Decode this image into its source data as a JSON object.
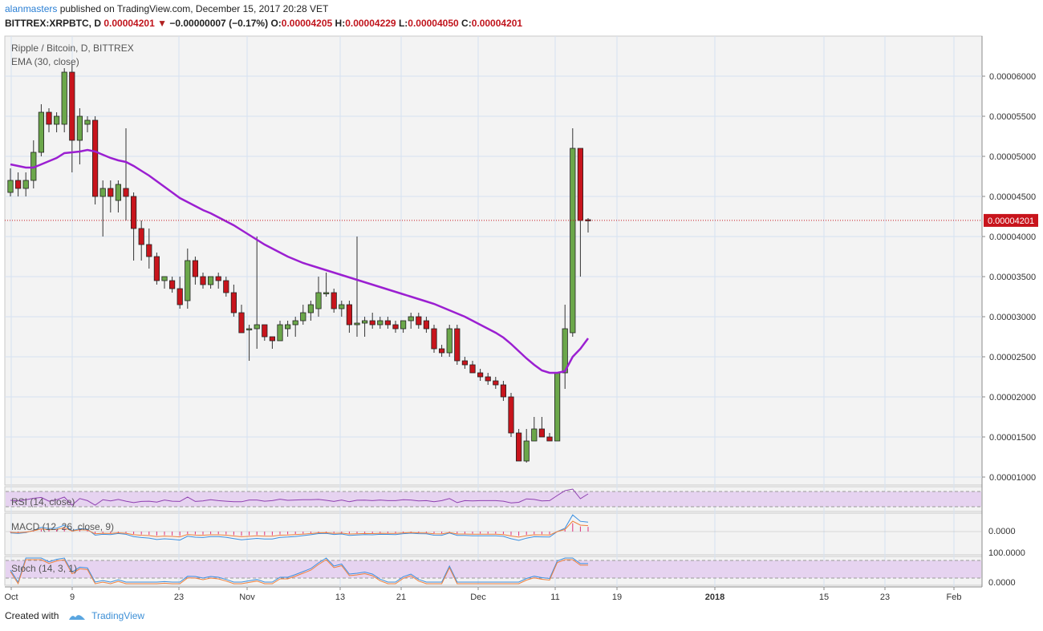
{
  "header": {
    "publisher": "alanmasters",
    "published_text": " published on TradingView.com, December 15, 2017 20:28 VET",
    "symbol": "BITTREX:XRPBTC, D",
    "last": "0.00004201",
    "change": "−0.00000007 (−0.17%)",
    "o_label": "O:",
    "o": "0.00004205",
    "h_label": "H:",
    "h": "0.00004229",
    "l_label": "L:",
    "l": "0.00004050",
    "c_label": "C:",
    "c": "0.00004201"
  },
  "footer": {
    "created_with": "Created with",
    "brand": "TradingView"
  },
  "chart_data": {
    "type": "candlestick",
    "title": "Ripple / Bitcoin, D, BITTREX",
    "indicator_label": "EMA (30, close)",
    "ylim": [
      9e-06,
      6.5e-05
    ],
    "y_ticks": [
      "0.00006000",
      "0.00005500",
      "0.00005000",
      "0.00004500",
      "0.00004000",
      "0.00003500",
      "0.00003000",
      "0.00002500",
      "0.00002000",
      "0.00001500",
      "0.00001000"
    ],
    "last_price_label": "0.00004201",
    "x_tick_labels": [
      "Oct",
      "9",
      "23",
      "Nov",
      "13",
      "21",
      "Dec",
      "11",
      "19",
      "2018",
      "15",
      "23",
      "Feb"
    ],
    "candles": [
      {
        "o": 4.55,
        "h": 4.85,
        "l": 4.5,
        "c": 4.7
      },
      {
        "o": 4.7,
        "h": 4.8,
        "l": 4.5,
        "c": 4.6
      },
      {
        "o": 4.6,
        "h": 4.8,
        "l": 4.5,
        "c": 4.7
      },
      {
        "o": 4.7,
        "h": 5.2,
        "l": 4.6,
        "c": 5.05
      },
      {
        "o": 5.05,
        "h": 5.65,
        "l": 5.0,
        "c": 5.55
      },
      {
        "o": 5.55,
        "h": 5.6,
        "l": 5.3,
        "c": 5.4
      },
      {
        "o": 5.4,
        "h": 5.55,
        "l": 5.3,
        "c": 5.5
      },
      {
        "o": 5.4,
        "h": 6.1,
        "l": 5.3,
        "c": 6.05
      },
      {
        "o": 6.05,
        "h": 6.15,
        "l": 4.8,
        "c": 5.2
      },
      {
        "o": 5.2,
        "h": 5.6,
        "l": 4.9,
        "c": 5.5
      },
      {
        "o": 5.4,
        "h": 5.5,
        "l": 5.3,
        "c": 5.45
      },
      {
        "o": 5.45,
        "h": 5.5,
        "l": 4.4,
        "c": 4.5
      },
      {
        "o": 4.5,
        "h": 4.7,
        "l": 4.0,
        "c": 4.6
      },
      {
        "o": 4.6,
        "h": 4.7,
        "l": 4.3,
        "c": 4.5
      },
      {
        "o": 4.45,
        "h": 4.7,
        "l": 4.3,
        "c": 4.65
      },
      {
        "o": 4.6,
        "h": 5.35,
        "l": 4.2,
        "c": 4.5
      },
      {
        "o": 4.5,
        "h": 4.55,
        "l": 3.7,
        "c": 4.1
      },
      {
        "o": 4.1,
        "h": 4.2,
        "l": 3.7,
        "c": 3.9
      },
      {
        "o": 3.9,
        "h": 4.1,
        "l": 3.6,
        "c": 3.75
      },
      {
        "o": 3.75,
        "h": 3.8,
        "l": 3.4,
        "c": 3.45
      },
      {
        "o": 3.45,
        "h": 3.5,
        "l": 3.35,
        "c": 3.5
      },
      {
        "o": 3.45,
        "h": 3.5,
        "l": 3.3,
        "c": 3.35
      },
      {
        "o": 3.35,
        "h": 3.5,
        "l": 3.1,
        "c": 3.15
      },
      {
        "o": 3.2,
        "h": 3.85,
        "l": 3.1,
        "c": 3.7
      },
      {
        "o": 3.7,
        "h": 3.75,
        "l": 3.4,
        "c": 3.5
      },
      {
        "o": 3.5,
        "h": 3.55,
        "l": 3.35,
        "c": 3.4
      },
      {
        "o": 3.4,
        "h": 3.5,
        "l": 3.35,
        "c": 3.5
      },
      {
        "o": 3.5,
        "h": 3.55,
        "l": 3.35,
        "c": 3.45
      },
      {
        "o": 3.45,
        "h": 3.5,
        "l": 3.25,
        "c": 3.3
      },
      {
        "o": 3.3,
        "h": 3.4,
        "l": 3.0,
        "c": 3.05
      },
      {
        "o": 3.05,
        "h": 3.15,
        "l": 2.8,
        "c": 2.8
      },
      {
        "o": 2.85,
        "h": 2.9,
        "l": 2.45,
        "c": 2.85
      },
      {
        "o": 2.85,
        "h": 4.0,
        "l": 2.6,
        "c": 2.9
      },
      {
        "o": 2.9,
        "h": 2.9,
        "l": 2.7,
        "c": 2.75
      },
      {
        "o": 2.75,
        "h": 2.75,
        "l": 2.6,
        "c": 2.7
      },
      {
        "o": 2.7,
        "h": 2.95,
        "l": 2.7,
        "c": 2.9
      },
      {
        "o": 2.85,
        "h": 2.95,
        "l": 2.75,
        "c": 2.9
      },
      {
        "o": 2.9,
        "h": 3.0,
        "l": 2.75,
        "c": 2.95
      },
      {
        "o": 2.95,
        "h": 3.15,
        "l": 2.9,
        "c": 3.05
      },
      {
        "o": 3.05,
        "h": 3.2,
        "l": 2.95,
        "c": 3.15
      },
      {
        "o": 3.1,
        "h": 3.5,
        "l": 3.0,
        "c": 3.3
      },
      {
        "o": 3.3,
        "h": 3.55,
        "l": 3.25,
        "c": 3.3
      },
      {
        "o": 3.3,
        "h": 3.35,
        "l": 3.05,
        "c": 3.1
      },
      {
        "o": 3.1,
        "h": 3.2,
        "l": 3.0,
        "c": 3.15
      },
      {
        "o": 3.15,
        "h": 3.2,
        "l": 2.8,
        "c": 2.9
      },
      {
        "o": 2.9,
        "h": 4.0,
        "l": 2.75,
        "c": 2.92
      },
      {
        "o": 2.92,
        "h": 3.0,
        "l": 2.75,
        "c": 2.95
      },
      {
        "o": 2.95,
        "h": 3.05,
        "l": 2.85,
        "c": 2.9
      },
      {
        "o": 2.9,
        "h": 3.0,
        "l": 2.85,
        "c": 2.95
      },
      {
        "o": 2.95,
        "h": 3.0,
        "l": 2.85,
        "c": 2.9
      },
      {
        "o": 2.9,
        "h": 2.95,
        "l": 2.8,
        "c": 2.85
      },
      {
        "o": 2.85,
        "h": 2.95,
        "l": 2.8,
        "c": 2.95
      },
      {
        "o": 2.95,
        "h": 3.05,
        "l": 2.85,
        "c": 3.0
      },
      {
        "o": 3.0,
        "h": 3.05,
        "l": 2.85,
        "c": 2.9
      },
      {
        "o": 2.95,
        "h": 3.0,
        "l": 2.8,
        "c": 2.85
      },
      {
        "o": 2.85,
        "h": 2.9,
        "l": 2.55,
        "c": 2.6
      },
      {
        "o": 2.6,
        "h": 2.65,
        "l": 2.5,
        "c": 2.55
      },
      {
        "o": 2.55,
        "h": 2.9,
        "l": 2.5,
        "c": 2.85
      },
      {
        "o": 2.85,
        "h": 2.9,
        "l": 2.4,
        "c": 2.45
      },
      {
        "o": 2.45,
        "h": 2.5,
        "l": 2.35,
        "c": 2.4
      },
      {
        "o": 2.4,
        "h": 2.45,
        "l": 2.3,
        "c": 2.3
      },
      {
        "o": 2.3,
        "h": 2.35,
        "l": 2.2,
        "c": 2.25
      },
      {
        "o": 2.25,
        "h": 2.3,
        "l": 2.15,
        "c": 2.2
      },
      {
        "o": 2.2,
        "h": 2.25,
        "l": 2.1,
        "c": 2.15
      },
      {
        "o": 2.15,
        "h": 2.2,
        "l": 1.95,
        "c": 2.0
      },
      {
        "o": 2.0,
        "h": 2.05,
        "l": 1.5,
        "c": 1.55
      },
      {
        "o": 1.55,
        "h": 1.6,
        "l": 1.2,
        "c": 1.2
      },
      {
        "o": 1.2,
        "h": 1.6,
        "l": 1.18,
        "c": 1.45
      },
      {
        "o": 1.45,
        "h": 1.75,
        "l": 1.45,
        "c": 1.6
      },
      {
        "o": 1.6,
        "h": 1.75,
        "l": 1.5,
        "c": 1.5
      },
      {
        "o": 1.5,
        "h": 1.55,
        "l": 1.45,
        "c": 1.45
      },
      {
        "o": 1.45,
        "h": 2.3,
        "l": 1.45,
        "c": 2.3
      },
      {
        "o": 2.3,
        "h": 3.15,
        "l": 2.1,
        "c": 2.85
      },
      {
        "o": 2.8,
        "h": 5.35,
        "l": 2.75,
        "c": 5.1
      },
      {
        "o": 5.1,
        "h": 5.1,
        "l": 3.5,
        "c": 4.2
      },
      {
        "o": 4.21,
        "h": 4.23,
        "l": 4.05,
        "c": 4.2
      }
    ],
    "ema": [
      4.9,
      4.88,
      4.86,
      4.86,
      4.9,
      4.94,
      4.98,
      5.04,
      5.05,
      5.06,
      5.08,
      5.06,
      5.02,
      4.98,
      4.95,
      4.93,
      4.88,
      4.82,
      4.76,
      4.69,
      4.62,
      4.55,
      4.48,
      4.43,
      4.38,
      4.33,
      4.29,
      4.24,
      4.19,
      4.14,
      4.08,
      4.02,
      3.96,
      3.9,
      3.85,
      3.8,
      3.75,
      3.71,
      3.67,
      3.64,
      3.61,
      3.58,
      3.55,
      3.52,
      3.49,
      3.46,
      3.43,
      3.4,
      3.37,
      3.34,
      3.31,
      3.28,
      3.25,
      3.22,
      3.19,
      3.16,
      3.12,
      3.08,
      3.04,
      3.0,
      2.95,
      2.9,
      2.85,
      2.8,
      2.74,
      2.66,
      2.57,
      2.48,
      2.4,
      2.33,
      2.3,
      2.3,
      2.32,
      2.5,
      2.6,
      2.73
    ],
    "rsi": {
      "label": "RSI (14, close)"
    },
    "macd": {
      "label": "MACD (12, 26, close, 9)",
      "tick": "0.0000"
    },
    "stoch": {
      "label": "Stoch (14, 3, 1)",
      "tick_top": "100.0000",
      "tick_bottom": "0.0000"
    }
  }
}
